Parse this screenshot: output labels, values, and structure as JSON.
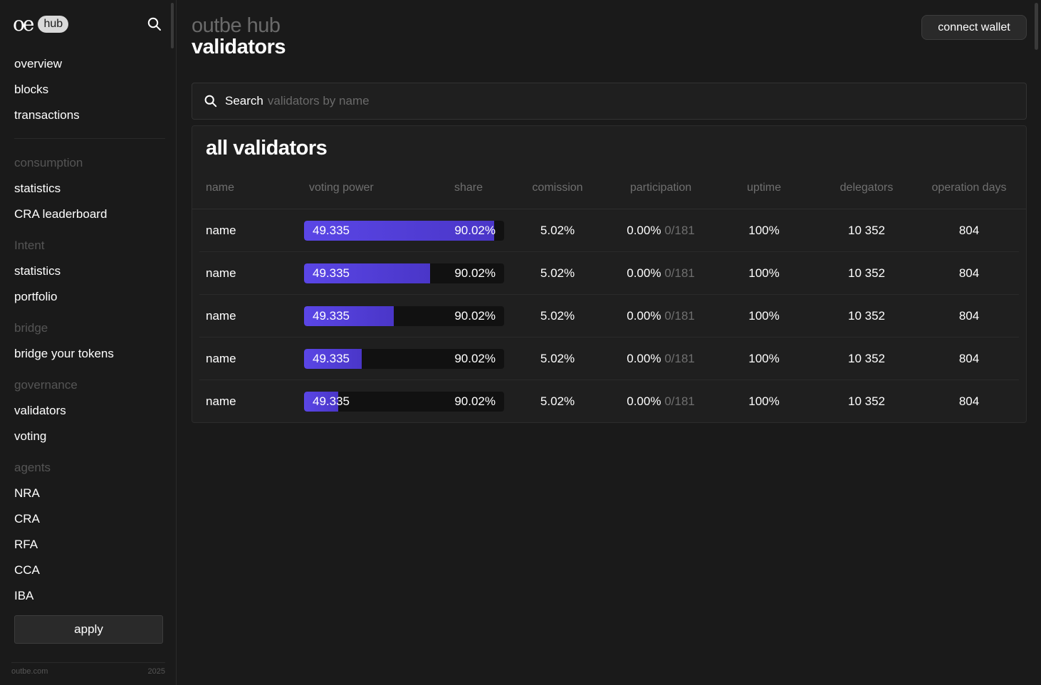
{
  "sidebar": {
    "logo_mark": "oe",
    "logo_pill": "hub",
    "search_icon": "search-icon",
    "top_items": [
      "overview",
      "blocks",
      "transactions"
    ],
    "sections": [
      {
        "title": "consumption",
        "items": [
          "statistics",
          "CRA leaderboard"
        ]
      },
      {
        "title": "Intent",
        "items": [
          "statistics",
          "portfolio"
        ]
      },
      {
        "title": "bridge",
        "items": [
          "bridge your tokens"
        ]
      },
      {
        "title": "governance",
        "items": [
          "validators",
          "voting"
        ]
      },
      {
        "title": "agents",
        "items": [
          "NRA",
          "CRA",
          "RFA",
          "CCA",
          "IBA"
        ]
      }
    ],
    "apply_label": "apply",
    "footer_site": "outbe.com",
    "footer_year": "2025"
  },
  "header": {
    "brand": "outbe hub",
    "title": "validators",
    "connect_label": "connect wallet"
  },
  "search": {
    "label": "Search",
    "placeholder": "validators by name",
    "icon": "search-icon"
  },
  "table": {
    "title": "all validators",
    "columns": [
      "name",
      "voting power",
      "share",
      "comission",
      "participation",
      "uptime",
      "delegators",
      "operation days"
    ],
    "rows": [
      {
        "name": "name",
        "voting_power": "49.335",
        "share": "90.02%",
        "fill": 0.95,
        "comission": "5.02%",
        "participation": "0.00%",
        "participation_ratio": "0/181",
        "uptime": "100%",
        "delegators": "10 352",
        "operation_days": "804"
      },
      {
        "name": "name",
        "voting_power": "49.335",
        "share": "90.02%",
        "fill": 0.63,
        "comission": "5.02%",
        "participation": "0.00%",
        "participation_ratio": "0/181",
        "uptime": "100%",
        "delegators": "10 352",
        "operation_days": "804"
      },
      {
        "name": "name",
        "voting_power": "49.335",
        "share": "90.02%",
        "fill": 0.45,
        "comission": "5.02%",
        "participation": "0.00%",
        "participation_ratio": "0/181",
        "uptime": "100%",
        "delegators": "10 352",
        "operation_days": "804"
      },
      {
        "name": "name",
        "voting_power": "49.335",
        "share": "90.02%",
        "fill": 0.29,
        "comission": "5.02%",
        "participation": "0.00%",
        "participation_ratio": "0/181",
        "uptime": "100%",
        "delegators": "10 352",
        "operation_days": "804"
      },
      {
        "name": "name",
        "voting_power": "49.335",
        "share": "90.02%",
        "fill": 0.17,
        "comission": "5.02%",
        "participation": "0.00%",
        "participation_ratio": "0/181",
        "uptime": "100%",
        "delegators": "10 352",
        "operation_days": "804"
      }
    ]
  },
  "colors": {
    "background": "#1a1a1a",
    "accent": "#5a46e6"
  }
}
